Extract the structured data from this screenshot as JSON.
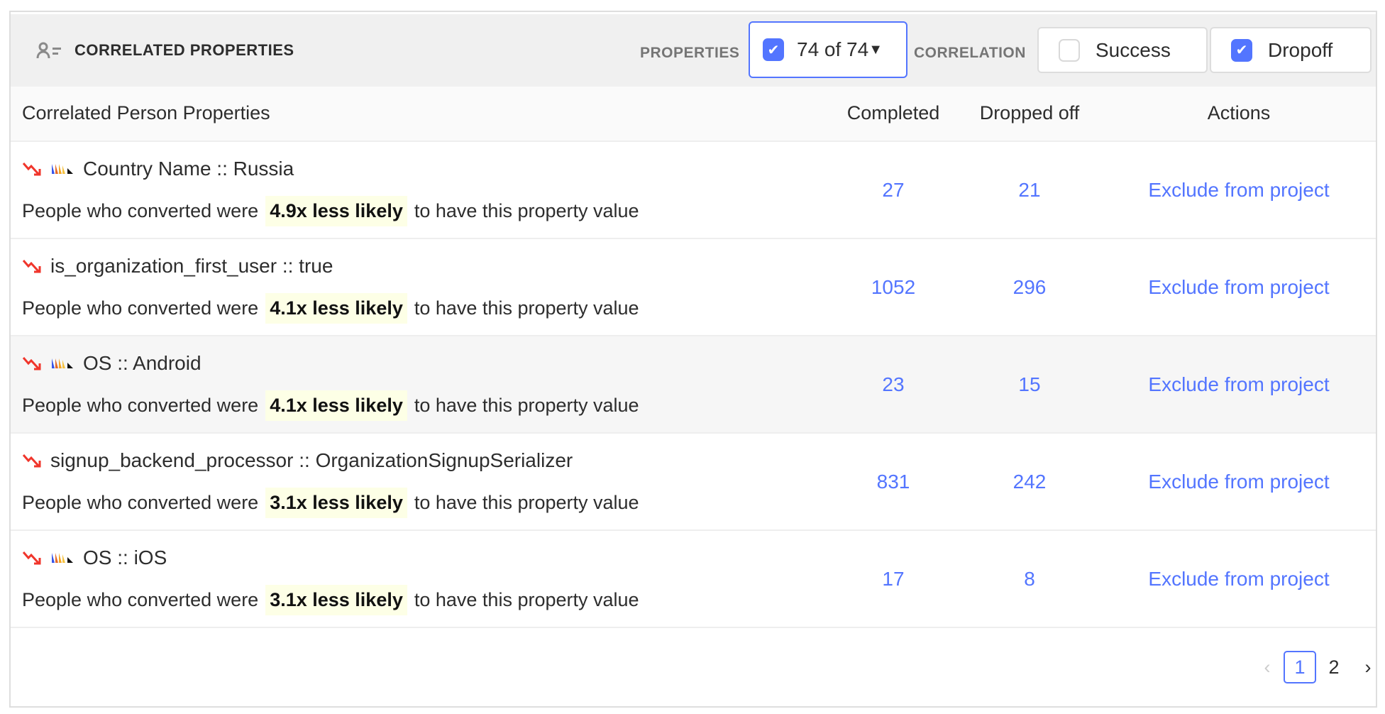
{
  "header": {
    "title": "CORRELATED PROPERTIES",
    "properties_label": "PROPERTIES",
    "properties_select": "74 of 74",
    "correlation_label": "CORRELATION",
    "success_label": "Success",
    "success_checked": false,
    "dropoff_label": "Dropoff",
    "dropoff_checked": true
  },
  "columns": {
    "name": "Correlated Person Properties",
    "completed": "Completed",
    "dropped": "Dropped off",
    "actions": "Actions"
  },
  "rows": [
    {
      "name": "Country Name :: Russia",
      "flag_icon": true,
      "prefix": "People who converted were",
      "odds": "4.9x less likely",
      "suffix": "to have this property value",
      "completed": "27",
      "dropped": "21",
      "action": "Exclude from project"
    },
    {
      "name": "is_organization_first_user :: true",
      "flag_icon": false,
      "prefix": "People who converted were",
      "odds": "4.1x less likely",
      "suffix": "to have this property value",
      "completed": "1052",
      "dropped": "296",
      "action": "Exclude from project"
    },
    {
      "name": "OS :: Android",
      "flag_icon": true,
      "prefix": "People who converted were",
      "odds": "4.1x less likely",
      "suffix": "to have this property value",
      "completed": "23",
      "dropped": "15",
      "action": "Exclude from project"
    },
    {
      "name": "signup_backend_processor :: OrganizationSignupSerializer",
      "flag_icon": false,
      "prefix": "People who converted were",
      "odds": "3.1x less likely",
      "suffix": "to have this property value",
      "completed": "831",
      "dropped": "242",
      "action": "Exclude from project"
    },
    {
      "name": "OS :: iOS",
      "flag_icon": true,
      "prefix": "People who converted were",
      "odds": "3.1x less likely",
      "suffix": "to have this property value",
      "completed": "17",
      "dropped": "8",
      "action": "Exclude from project"
    }
  ],
  "pagination": {
    "pages": [
      "1",
      "2"
    ],
    "current": "1"
  },
  "colors": {
    "accent": "#5375ff",
    "trend_down": "#f0352b",
    "highlight": "#fdffe6"
  }
}
